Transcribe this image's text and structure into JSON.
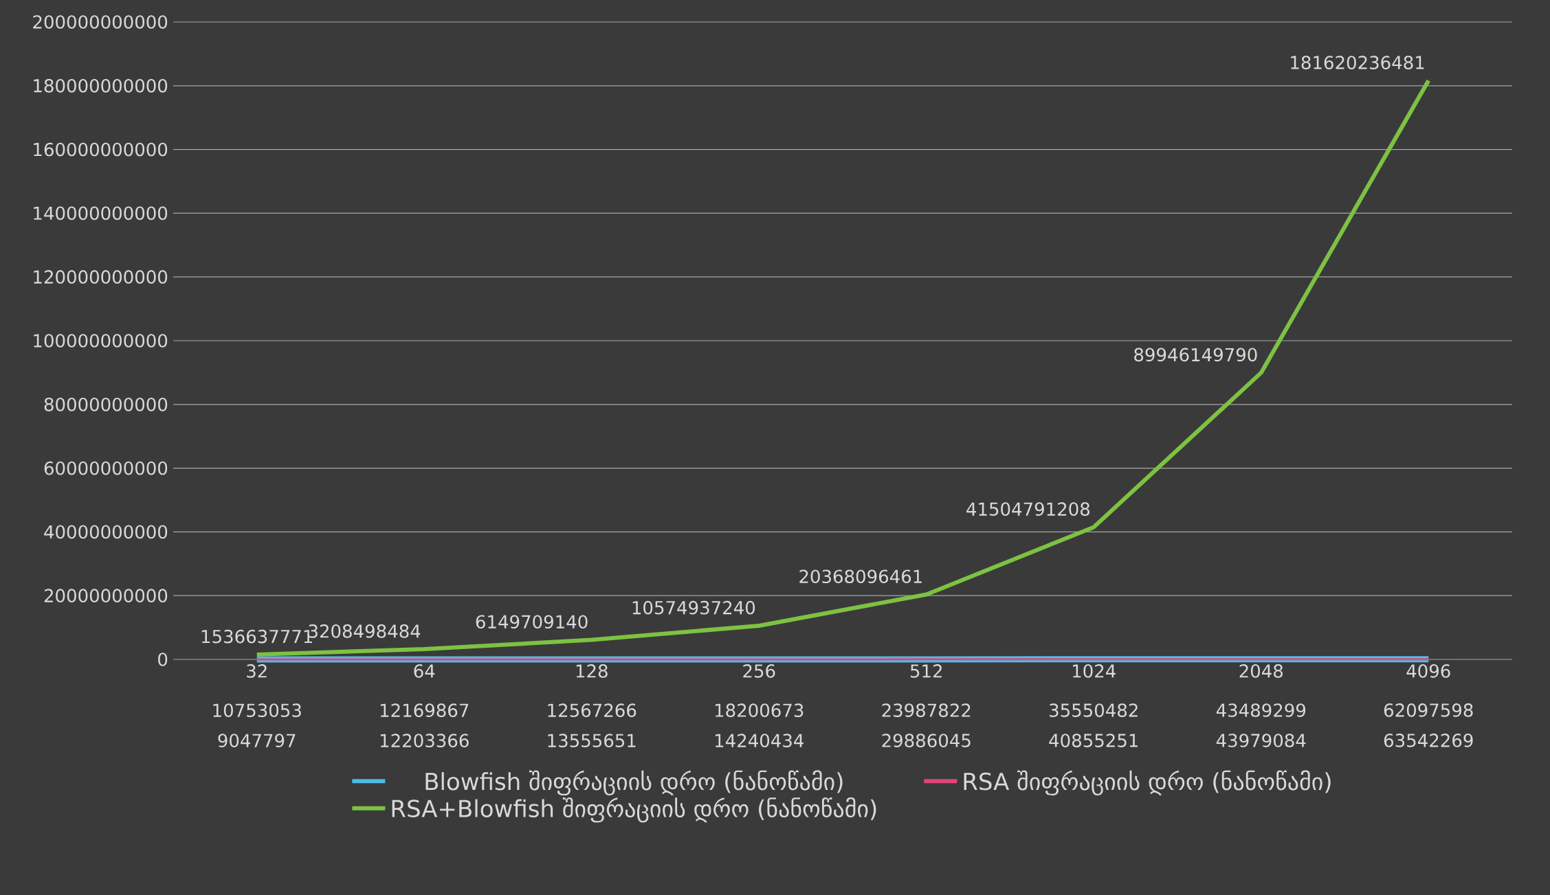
{
  "chart_data": {
    "type": "line",
    "categories": [
      "32",
      "64",
      "128",
      "256",
      "512",
      "1024",
      "2048",
      "4096"
    ],
    "series": [
      {
        "name": "Blowfish შიფრაციის დრო (ნანოწამი)",
        "color": "#4cbde6",
        "values": [
          10753053,
          12169867,
          12567266,
          18200673,
          23987822,
          35550482,
          43489299,
          62097598
        ]
      },
      {
        "name": "RSA შიფრაციის დრო (ნანოწამი)",
        "color": "#e0457b",
        "values": [
          9047797,
          12203366,
          13555651,
          14240434,
          29886045,
          40855251,
          43979084,
          63542269
        ]
      },
      {
        "name": "RSA+Blowfish შიფრაციის დრო (ნანოწამი)",
        "color": "#7dc242",
        "values": [
          1536637771,
          3208498484,
          6149709140,
          10574937240,
          20368096461,
          41504791208,
          89946149790,
          181620236481
        ]
      }
    ],
    "ylim": [
      0,
      200000000000
    ],
    "yticks": [
      0,
      20000000000,
      40000000000,
      60000000000,
      80000000000,
      100000000000,
      120000000000,
      140000000000,
      160000000000,
      180000000000,
      200000000000
    ],
    "grid": "y",
    "legend": "bottom",
    "data_labels": true
  }
}
